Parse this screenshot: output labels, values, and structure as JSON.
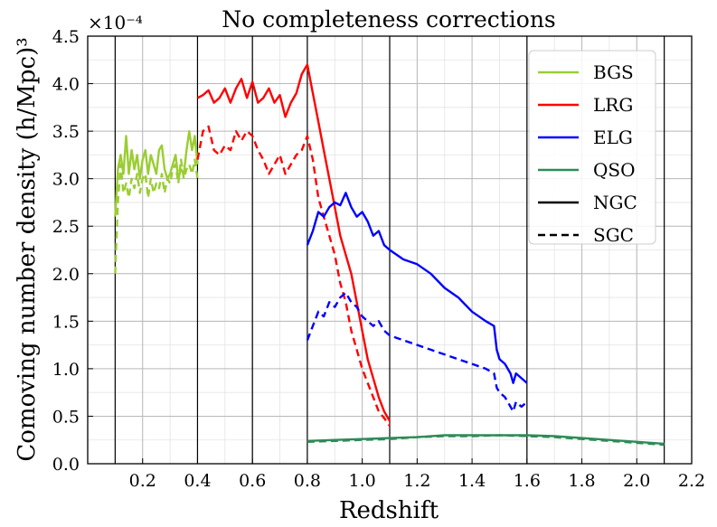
{
  "chart_data": {
    "type": "line",
    "title": "No completeness corrections",
    "xlabel": "Redshift",
    "ylabel": "Comoving number density (h/Mpc)³",
    "y_multiplier": "×10⁻⁴",
    "xlim": [
      0.0,
      2.2
    ],
    "ylim": [
      0.0,
      4.5
    ],
    "x_ticks": [
      0.2,
      0.4,
      0.6,
      0.8,
      1.0,
      1.2,
      1.4,
      1.6,
      1.8,
      2.0,
      2.2
    ],
    "y_ticks": [
      0.0,
      0.5,
      1.0,
      1.5,
      2.0,
      2.5,
      3.0,
      3.5,
      4.0,
      4.5
    ],
    "x_tick_labels": [
      "0.2",
      "0.4",
      "0.6",
      "0.8",
      "1.0",
      "1.2",
      "1.4",
      "1.6",
      "1.8",
      "2.0",
      "2.2"
    ],
    "y_tick_labels": [
      "0.0",
      "0.5",
      "1.0",
      "1.5",
      "2.0",
      "2.5",
      "3.0",
      "3.5",
      "4.0",
      "4.5"
    ],
    "grid": true,
    "minor_grid_step_x": 0.1,
    "minor_grid_step_y": 0.25,
    "vertical_lines": [
      0.1,
      0.4,
      0.6,
      0.8,
      1.1,
      1.6,
      2.1
    ],
    "legend_position": "top-right",
    "legend": [
      {
        "label": "BGS",
        "color": "#9acd32",
        "style": "solid"
      },
      {
        "label": "LRG",
        "color": "#ff0000",
        "style": "solid"
      },
      {
        "label": "ELG",
        "color": "#0000ff",
        "style": "solid"
      },
      {
        "label": "QSO",
        "color": "#2e8b57",
        "style": "solid"
      },
      {
        "label": "NGC",
        "color": "#000000",
        "style": "solid"
      },
      {
        "label": "SGC",
        "color": "#000000",
        "style": "dashed"
      }
    ],
    "series": [
      {
        "name": "BGS",
        "region": "NGC",
        "color": "#9acd32",
        "style": "solid",
        "x": [
          0.1,
          0.11,
          0.12,
          0.13,
          0.14,
          0.15,
          0.16,
          0.17,
          0.18,
          0.19,
          0.2,
          0.21,
          0.22,
          0.23,
          0.24,
          0.25,
          0.26,
          0.27,
          0.28,
          0.29,
          0.3,
          0.31,
          0.32,
          0.33,
          0.34,
          0.35,
          0.36,
          0.37,
          0.38,
          0.39,
          0.4
        ],
        "y": [
          2.6,
          3.1,
          3.25,
          3.05,
          3.45,
          3.05,
          3.3,
          3.1,
          3.25,
          3.0,
          3.2,
          3.3,
          3.05,
          3.25,
          3.15,
          3.05,
          3.3,
          3.35,
          3.1,
          3.0,
          3.05,
          3.15,
          3.25,
          3.0,
          3.1,
          3.05,
          3.3,
          3.5,
          3.3,
          3.45,
          3.15
        ]
      },
      {
        "name": "BGS",
        "region": "SGC",
        "color": "#9acd32",
        "style": "dashed",
        "x": [
          0.1,
          0.11,
          0.12,
          0.13,
          0.14,
          0.15,
          0.16,
          0.17,
          0.18,
          0.19,
          0.2,
          0.21,
          0.22,
          0.23,
          0.24,
          0.25,
          0.26,
          0.27,
          0.28,
          0.29,
          0.3,
          0.31,
          0.32,
          0.33,
          0.34,
          0.35,
          0.36,
          0.37,
          0.38,
          0.39,
          0.4
        ],
        "y": [
          2.0,
          2.75,
          3.15,
          2.85,
          2.95,
          2.8,
          3.0,
          2.9,
          3.05,
          2.85,
          3.0,
          3.05,
          2.8,
          3.0,
          2.85,
          2.95,
          2.9,
          3.05,
          2.85,
          3.0,
          2.95,
          3.1,
          3.15,
          2.95,
          3.2,
          3.0,
          3.1,
          3.15,
          3.05,
          3.2,
          3.0
        ]
      },
      {
        "name": "LRG",
        "region": "NGC",
        "color": "#ff0000",
        "style": "solid",
        "x": [
          0.4,
          0.42,
          0.44,
          0.46,
          0.48,
          0.5,
          0.52,
          0.54,
          0.56,
          0.58,
          0.6,
          0.62,
          0.64,
          0.66,
          0.68,
          0.7,
          0.72,
          0.74,
          0.76,
          0.78,
          0.8,
          0.82,
          0.84,
          0.86,
          0.88,
          0.9,
          0.92,
          0.94,
          0.96,
          0.98,
          1.0,
          1.02,
          1.04,
          1.06,
          1.08,
          1.1
        ],
        "y": [
          3.85,
          3.88,
          3.93,
          3.8,
          3.85,
          3.95,
          3.8,
          3.95,
          4.05,
          3.85,
          4.02,
          3.8,
          3.85,
          3.95,
          3.8,
          3.88,
          3.65,
          3.8,
          3.9,
          4.1,
          4.2,
          3.9,
          3.6,
          3.3,
          3.0,
          2.7,
          2.4,
          2.2,
          2.0,
          1.7,
          1.4,
          1.1,
          0.9,
          0.7,
          0.55,
          0.45
        ]
      },
      {
        "name": "LRG",
        "region": "SGC",
        "color": "#ff0000",
        "style": "dashed",
        "x": [
          0.4,
          0.42,
          0.44,
          0.46,
          0.48,
          0.5,
          0.52,
          0.54,
          0.56,
          0.58,
          0.6,
          0.62,
          0.64,
          0.66,
          0.68,
          0.7,
          0.72,
          0.74,
          0.76,
          0.78,
          0.8,
          0.82,
          0.84,
          0.86,
          0.88,
          0.9,
          0.92,
          0.94,
          0.96,
          0.98,
          1.0,
          1.02,
          1.04,
          1.06,
          1.08,
          1.1
        ],
        "y": [
          3.2,
          3.5,
          3.55,
          3.3,
          3.25,
          3.35,
          3.3,
          3.5,
          3.4,
          3.5,
          3.45,
          3.3,
          3.2,
          3.05,
          3.15,
          3.25,
          3.05,
          3.15,
          3.25,
          3.3,
          3.45,
          3.2,
          2.8,
          2.6,
          2.4,
          2.2,
          1.9,
          1.7,
          1.4,
          1.2,
          1.0,
          0.85,
          0.7,
          0.55,
          0.48,
          0.4
        ]
      },
      {
        "name": "ELG",
        "region": "NGC",
        "color": "#0000ff",
        "style": "solid",
        "x": [
          0.8,
          0.82,
          0.84,
          0.86,
          0.88,
          0.9,
          0.92,
          0.94,
          0.96,
          0.98,
          1.0,
          1.02,
          1.04,
          1.06,
          1.08,
          1.1,
          1.15,
          1.2,
          1.25,
          1.3,
          1.35,
          1.4,
          1.45,
          1.48,
          1.49,
          1.5,
          1.52,
          1.54,
          1.55,
          1.56,
          1.58,
          1.6
        ],
        "y": [
          2.3,
          2.45,
          2.65,
          2.6,
          2.7,
          2.75,
          2.72,
          2.85,
          2.7,
          2.6,
          2.65,
          2.55,
          2.4,
          2.45,
          2.3,
          2.25,
          2.15,
          2.1,
          2.0,
          1.85,
          1.75,
          1.6,
          1.5,
          1.45,
          1.2,
          1.1,
          1.05,
          0.95,
          0.85,
          0.95,
          0.9,
          0.85
        ]
      },
      {
        "name": "ELG",
        "region": "SGC",
        "color": "#0000ff",
        "style": "dashed",
        "x": [
          0.8,
          0.82,
          0.84,
          0.86,
          0.88,
          0.9,
          0.92,
          0.94,
          0.96,
          0.98,
          1.0,
          1.02,
          1.04,
          1.06,
          1.08,
          1.1,
          1.15,
          1.2,
          1.25,
          1.3,
          1.35,
          1.4,
          1.45,
          1.48,
          1.49,
          1.5,
          1.52,
          1.54,
          1.55,
          1.56,
          1.58,
          1.6
        ],
        "y": [
          1.3,
          1.45,
          1.6,
          1.55,
          1.7,
          1.65,
          1.75,
          1.8,
          1.7,
          1.65,
          1.55,
          1.5,
          1.45,
          1.5,
          1.4,
          1.35,
          1.3,
          1.25,
          1.2,
          1.15,
          1.1,
          1.05,
          1.0,
          0.95,
          0.8,
          0.75,
          0.7,
          0.6,
          0.55,
          0.65,
          0.6,
          0.65
        ]
      },
      {
        "name": "QSO",
        "region": "NGC",
        "color": "#2e8b57",
        "style": "solid",
        "x": [
          0.8,
          0.9,
          1.0,
          1.1,
          1.2,
          1.3,
          1.4,
          1.5,
          1.6,
          1.7,
          1.8,
          1.9,
          2.0,
          2.1
        ],
        "y": [
          0.24,
          0.25,
          0.26,
          0.27,
          0.28,
          0.3,
          0.3,
          0.3,
          0.3,
          0.29,
          0.27,
          0.25,
          0.23,
          0.21
        ]
      },
      {
        "name": "QSO",
        "region": "SGC",
        "color": "#2e8b57",
        "style": "dashed",
        "x": [
          0.8,
          0.9,
          1.0,
          1.1,
          1.2,
          1.3,
          1.4,
          1.5,
          1.6,
          1.7,
          1.8,
          1.9,
          2.0,
          2.1
        ],
        "y": [
          0.23,
          0.24,
          0.25,
          0.26,
          0.28,
          0.29,
          0.29,
          0.3,
          0.29,
          0.28,
          0.26,
          0.24,
          0.22,
          0.2
        ]
      }
    ]
  }
}
